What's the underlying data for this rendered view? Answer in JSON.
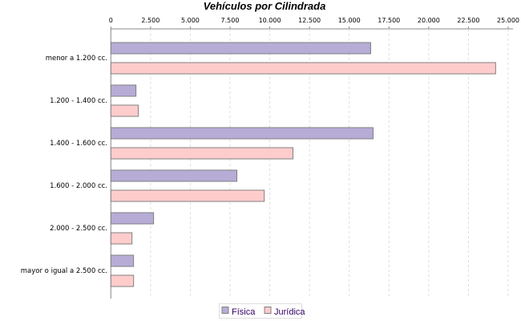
{
  "chart_data": {
    "type": "bar",
    "orientation": "horizontal",
    "title": "Vehículos por Cilindrada",
    "categories": [
      "menor a 1.200 cc.",
      "1.200 - 1.400 cc.",
      "1.400 - 1.600 cc.",
      "1.600 - 2.000 cc.",
      "2.000 - 2.500 cc.",
      "mayor o igual a 2.500 cc."
    ],
    "series": [
      {
        "name": "Física",
        "color": "#b6acd6",
        "values": [
          16350,
          1580,
          16500,
          7930,
          2690,
          1430
        ]
      },
      {
        "name": "Jurídica",
        "color": "#ffcccc",
        "values": [
          24210,
          1730,
          11460,
          9650,
          1330,
          1430
        ]
      }
    ],
    "xlim": [
      0,
      25000
    ],
    "ticks": [
      0,
      2500,
      5000,
      7500,
      10000,
      12500,
      15000,
      17500,
      20000,
      22500,
      25000
    ],
    "tick_labels": [
      "0",
      "2.500",
      "5.000",
      "7.500",
      "10.000",
      "12.500",
      "15.000",
      "17.500",
      "20.000",
      "22.500",
      "25.000"
    ],
    "axis_position": "top",
    "grid": true,
    "legend_placement": "bottom"
  }
}
